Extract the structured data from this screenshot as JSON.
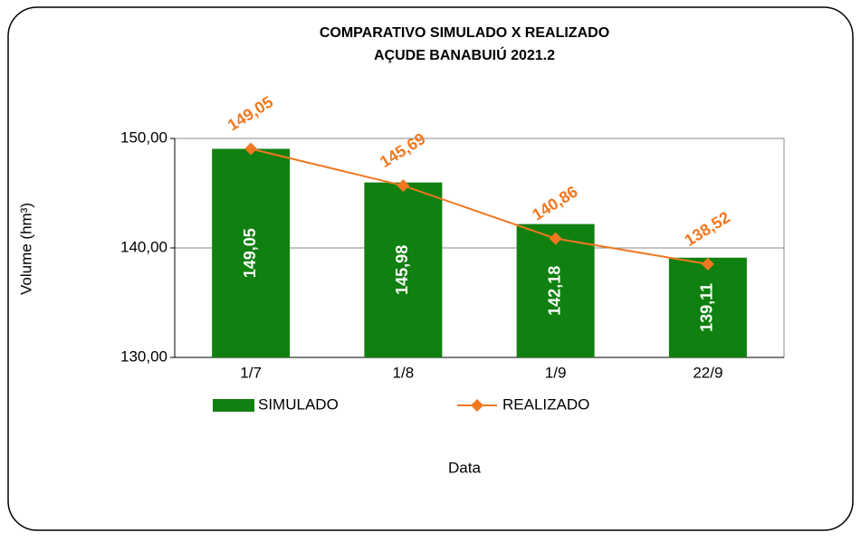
{
  "chart_data": {
    "type": "bar",
    "title": "COMPARATIVO SIMULADO X REALIZADO",
    "subtitle": "AÇUDE BANABUIÚ 2021.2",
    "x_label": "Data",
    "y_label": "Volume (hm³)",
    "categories": [
      "1/7",
      "1/8",
      "1/9",
      "22/9"
    ],
    "series": [
      {
        "name": "SIMULADO",
        "type": "bar",
        "color": "#108010",
        "values": [
          149.05,
          145.98,
          142.18,
          139.11
        ],
        "value_labels": [
          "149,05",
          "145,98",
          "142,18",
          "139,11"
        ]
      },
      {
        "name": "REALIZADO",
        "type": "line",
        "color": "#f07820",
        "values": [
          149.05,
          145.69,
          140.86,
          138.52
        ],
        "value_labels": [
          "149,05",
          "145,69",
          "140,86",
          "138,52"
        ]
      }
    ],
    "ylim": [
      130,
      150
    ],
    "yticks": [
      {
        "value": 130,
        "label": "130,00"
      },
      {
        "value": 140,
        "label": "140,00"
      },
      {
        "value": 150,
        "label": "150,00"
      }
    ],
    "grid": true,
    "legend": "bottom"
  }
}
